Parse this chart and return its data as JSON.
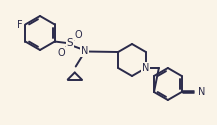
{
  "bg_color": "#faf4e8",
  "bond_color": "#2a2a4a",
  "label_color": "#2a2a4a",
  "atom_bg": "#faf4e8",
  "line_width": 1.4,
  "font_size": 7.0,
  "figsize": [
    2.17,
    1.25
  ],
  "dpi": 100,
  "xlim": [
    0,
    217
  ],
  "ylim": [
    0,
    125
  ]
}
